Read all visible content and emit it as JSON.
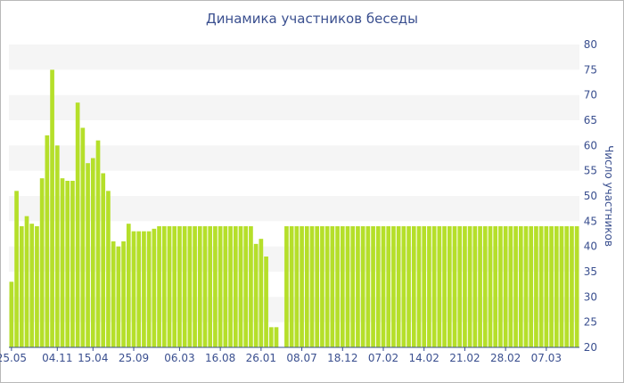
{
  "chart_data": {
    "type": "bar",
    "title": "Динамика участников беседы",
    "xlabel": "",
    "ylabel": "Число участников",
    "ylim": [
      20,
      80
    ],
    "yticks": [
      20,
      25,
      30,
      35,
      40,
      45,
      50,
      55,
      60,
      65,
      70,
      75,
      80
    ],
    "y_axis_position": "right",
    "grid": "alternating horizontal bands",
    "bar_color": "#b5df2a",
    "band_color": "#f5f5f5",
    "x_tick_labels": [
      {
        "index": 0,
        "label": "25.05"
      },
      {
        "index": 9,
        "label": "04.11"
      },
      {
        "index": 16,
        "label": "15.04"
      },
      {
        "index": 24,
        "label": "25.09"
      },
      {
        "index": 33,
        "label": "06.03"
      },
      {
        "index": 41,
        "label": "16.08"
      },
      {
        "index": 49,
        "label": "26.01"
      },
      {
        "index": 57,
        "label": "08.07"
      },
      {
        "index": 65,
        "label": "18.12"
      },
      {
        "index": 73,
        "label": "07.02"
      },
      {
        "index": 81,
        "label": "14.02"
      },
      {
        "index": 89,
        "label": "21.02"
      },
      {
        "index": 97,
        "label": "28.02"
      },
      {
        "index": 105,
        "label": "07.03"
      }
    ],
    "values": [
      33,
      51,
      44,
      46,
      44.5,
      44,
      53.5,
      62,
      75,
      60,
      53.5,
      53,
      53,
      68.5,
      63.5,
      56.5,
      57.5,
      61,
      54.5,
      51,
      41,
      40,
      41,
      44.5,
      43,
      43,
      43,
      43,
      43.5,
      44,
      44,
      44,
      44,
      44,
      44,
      44,
      44,
      44,
      44,
      44,
      44,
      44,
      44,
      44,
      44,
      44,
      44,
      44,
      40.5,
      41.5,
      38,
      24,
      24,
      null,
      44,
      44,
      44,
      44,
      44,
      44,
      44,
      44,
      44,
      44,
      44,
      44,
      44,
      44,
      44,
      44,
      44,
      44,
      44,
      44,
      44,
      44,
      44,
      44,
      44,
      44,
      44,
      44,
      44,
      44,
      44,
      44,
      44,
      44,
      44,
      44,
      44,
      44,
      44,
      44,
      44,
      44,
      44,
      44,
      44,
      44,
      44,
      44,
      44,
      44,
      44,
      44,
      44,
      44,
      44,
      44,
      44,
      44
    ]
  }
}
